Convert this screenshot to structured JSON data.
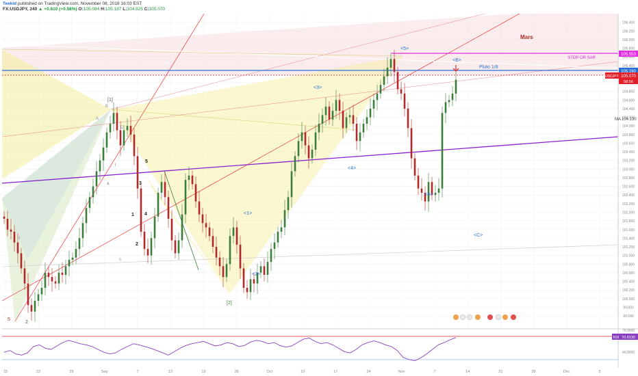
{
  "header": {
    "author": "Teekid",
    "published": "published on TradingView.com, November 08, 2016 16:03 EST",
    "symbol": "FX:USDJPY, 240",
    "change": "▲ +0.610 (+0.58%)",
    "ohlc": [
      {
        "k": "O:",
        "v": "105.084"
      },
      {
        "k": "H:",
        "v": "105.187"
      },
      {
        "k": "L:",
        "v": "104.925"
      },
      {
        "k": "C:",
        "v": "105.070"
      }
    ]
  },
  "chart_data": {
    "type": "line",
    "symbol": "FX:USDJPY",
    "interval": "240",
    "ylim": [
      99.3,
      106.6
    ],
    "y_ticks": [
      "99.600",
      "99.800",
      "100.000",
      "100.200",
      "100.400",
      "100.600",
      "100.800",
      "101.000",
      "101.200",
      "101.400",
      "101.600",
      "101.800",
      "102.000",
      "102.200",
      "102.400",
      "102.600",
      "102.800",
      "103.000",
      "103.200",
      "103.400",
      "103.600",
      "103.800",
      "104.000",
      "104.200",
      "104.400",
      "104.600",
      "104.800",
      "105.000",
      "105.200",
      "105.400",
      "105.600",
      "105.800",
      "106.000",
      "106.200",
      "106.400"
    ],
    "x_ticks": [
      "15",
      "22",
      "29",
      "Sep",
      "7",
      "12",
      "19",
      "26",
      "Oct",
      "10",
      "17",
      "24",
      "Nov",
      "7",
      "14",
      "21",
      "28",
      "Dec",
      "5"
    ],
    "series": [
      {
        "values": [
          101.85,
          101.6,
          101.55,
          101.3,
          101.05,
          100.7,
          100.35,
          99.85,
          99.7,
          99.95,
          100.1,
          100.25,
          100.6,
          100.5,
          100.4,
          100.35,
          100.6,
          100.55,
          100.75,
          100.9,
          100.95,
          101.15,
          101.4,
          101.75,
          102.1,
          102.35,
          102.6,
          102.95,
          103.2,
          103.5,
          103.85,
          104.05,
          104.3,
          103.9,
          103.55,
          103.9,
          104.0,
          103.8,
          103.3,
          102.55,
          101.55,
          101.15,
          101.0,
          101.4,
          101.9,
          102.45,
          102.7,
          102.35,
          101.85,
          101.35,
          101.05,
          101.35,
          101.95,
          102.75,
          102.85,
          102.65,
          102.25,
          101.95,
          101.75,
          101.65,
          101.45,
          101.2,
          100.95,
          100.75,
          100.5,
          100.8,
          101.45,
          101.65,
          101.25,
          100.7,
          100.25,
          100.15,
          100.45,
          100.35,
          100.6,
          100.75,
          100.55,
          100.85,
          101.15,
          101.3,
          101.55,
          101.65,
          102.05,
          102.35,
          102.95,
          103.3,
          103.65,
          103.85,
          103.55,
          103.25,
          103.45,
          103.85,
          104.05,
          104.25,
          104.45,
          104.15,
          104.35,
          104.6,
          104.35,
          103.95,
          104.2,
          104.25,
          104.05,
          103.65,
          103.85,
          104.05,
          104.2,
          104.4,
          104.6,
          104.75,
          104.95,
          105.15,
          105.35,
          105.55,
          105.25,
          104.85,
          104.75,
          104.4,
          103.95,
          103.25,
          102.85,
          102.55,
          102.45,
          102.25,
          102.7,
          102.4,
          102.45,
          102.55,
          104.3,
          104.55,
          104.6,
          104.75,
          105.07
        ]
      },
      {
        "name": "RSI",
        "values": [
          45,
          48,
          42,
          40,
          44,
          55,
          58,
          52,
          50,
          56,
          62,
          66,
          63,
          60,
          58,
          55,
          50,
          45,
          42,
          44,
          50,
          55,
          60,
          58,
          55,
          52,
          48,
          44,
          40,
          46,
          52,
          57,
          60,
          62,
          64,
          60,
          56,
          58,
          62,
          60,
          55,
          57,
          63,
          66,
          64,
          60,
          62,
          57,
          54,
          56,
          62,
          68,
          70,
          64,
          60,
          62,
          58,
          52,
          46,
          44,
          50,
          58,
          62,
          65,
          62,
          58,
          55,
          48,
          36,
          32,
          30,
          35,
          42,
          50,
          58,
          62,
          67,
          70.8
        ]
      }
    ],
    "price_labels": [
      {
        "text": "STOP OR SAR",
        "value": "105.553"
      },
      {
        "text": "Pluto 1/8",
        "value": "105.190"
      },
      {
        "text": "USDJPY",
        "value": "105.070",
        "sub": "58:56"
      },
      {
        "text": "MA",
        "value": "104.130"
      }
    ],
    "annotations": [
      "Mars",
      "Pluto 1/8",
      "STOP OR SAR",
      "<5>",
      "<B>",
      "<3>",
      "<4>",
      "<A>",
      "<C>",
      "<1>",
      "<2>",
      "[1]",
      "[2]",
      "5",
      "2",
      "1",
      "2",
      "3",
      "4",
      "5",
      "B",
      "C",
      "A",
      "a",
      "c",
      "l",
      "l"
    ],
    "rsi": {
      "label": "RSI",
      "value": "70.8130",
      "levels": [
        70,
        30
      ],
      "ylim": [
        20,
        85
      ],
      "tick_labels": [
        "70.0000",
        "40.0000"
      ]
    },
    "colors": {
      "up": "#3b7d3b",
      "down": "#b02828",
      "rsi": "#8a3fc0",
      "pluto": "#2a6fd8",
      "stop": "#e22ae2",
      "price": "#e2202a",
      "purple_line": "#8a1fd0"
    }
  }
}
